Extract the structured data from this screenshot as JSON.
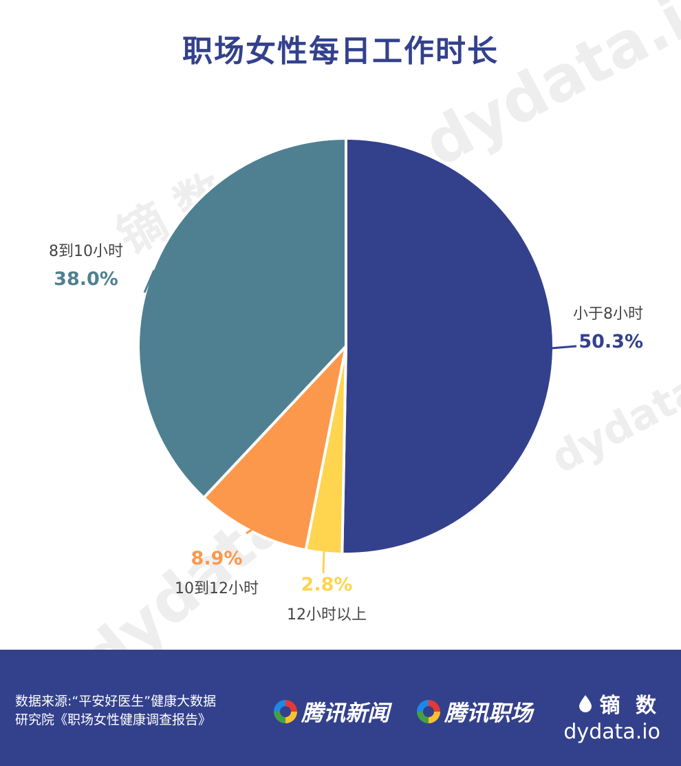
{
  "title": "职场女性每日工作时长",
  "chart_data": {
    "type": "pie",
    "title": "职场女性每日工作时长",
    "start_angle_deg": 0,
    "direction": "clockwise",
    "slices": [
      {
        "label": "小于8小时",
        "value": 50.3,
        "value_label": "50.3%",
        "color": "#33418c"
      },
      {
        "label": "12小时以上",
        "value": 2.8,
        "value_label": "2.8%",
        "color": "#ffd44f"
      },
      {
        "label": "10到12小时",
        "value": 8.9,
        "value_label": "8.9%",
        "color": "#fc984c"
      },
      {
        "label": "8到10小时",
        "value": 38.0,
        "value_label": "38.0%",
        "color": "#4f8092"
      }
    ]
  },
  "watermark": {
    "text": "dydata.io",
    "cn": "镝 数"
  },
  "footer": {
    "source_line1": "数据来源:“平安好医生”健康大数据",
    "source_line2": "研究院《职场女性健康调查报告》",
    "partner1": "腾讯新闻",
    "partner2": "腾讯职场",
    "brand_cn": "镝 数",
    "brand_en": "dydata.io"
  },
  "colors": {
    "accent": "#33418c",
    "background": "#ffffff"
  }
}
